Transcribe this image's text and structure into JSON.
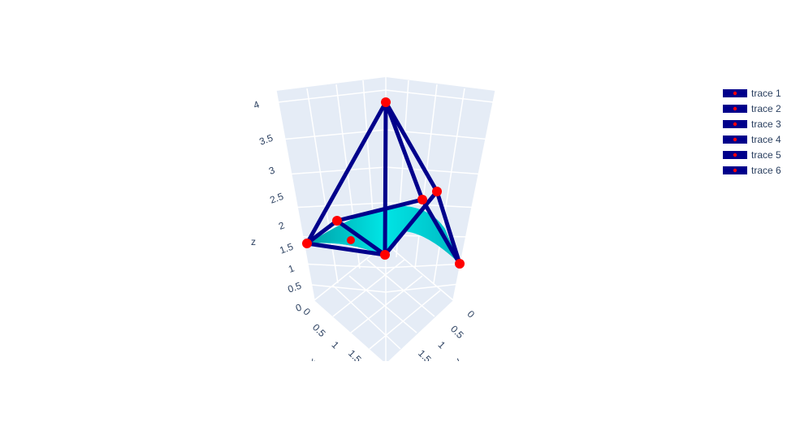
{
  "chart_data": {
    "type": "scatter3d",
    "axes": {
      "z": {
        "label": "z",
        "ticks": [
          "0",
          "0.5",
          "1",
          "1.5",
          "2",
          "2.5",
          "3",
          "3.5",
          "4"
        ]
      },
      "x": {
        "label": "x",
        "ticks": [
          "0",
          "0.5",
          "1",
          "1.5"
        ]
      },
      "y": {
        "label": "y",
        "ticks": [
          "0",
          "0.5",
          "1",
          "1.5"
        ]
      }
    },
    "background": "#e5ecf6",
    "line_color": "#00008b",
    "marker_color": "#ff0000",
    "surface_color": "#00e5e5",
    "legend_position": "top-right",
    "series": [
      {
        "name": "trace 1"
      },
      {
        "name": "trace 2"
      },
      {
        "name": "trace 3"
      },
      {
        "name": "trace 4"
      },
      {
        "name": "trace 5"
      },
      {
        "name": "trace 6"
      }
    ]
  }
}
